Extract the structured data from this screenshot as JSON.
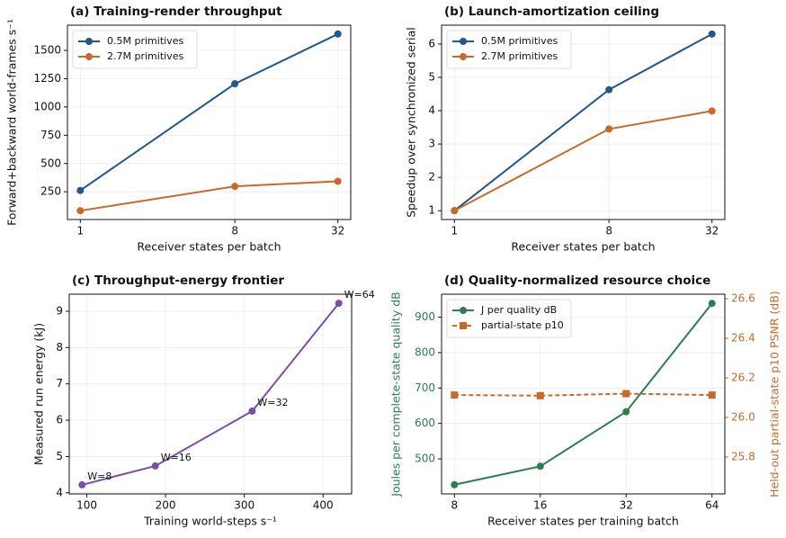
{
  "chart_data": [
    {
      "type": "line",
      "title": "(a) Training-render throughput",
      "xlabel": "Receiver states per batch",
      "ylabel": "Forward+backward world-frames s⁻¹",
      "xscale": "log",
      "x": [
        1,
        8,
        32
      ],
      "xlim": [
        0.841,
        38.05
      ],
      "xticks": [
        1,
        8,
        32
      ],
      "ylim": [
        5,
        1723
      ],
      "yticks": [
        250,
        500,
        750,
        1000,
        1250,
        1500
      ],
      "grid": true,
      "legend": "upper left",
      "series": [
        {
          "name": "0.5M primitives",
          "color": "#22578a",
          "marker": "o",
          "linestyle": "solid",
          "values": [
            262,
            1205,
            1645
          ]
        },
        {
          "name": "2.7M primitives",
          "color": "#c8692a",
          "marker": "o",
          "linestyle": "solid",
          "values": [
            83,
            298,
            343
          ]
        }
      ]
    },
    {
      "type": "line",
      "title": "(b) Launch-amortization ceiling",
      "xlabel": "Receiver states per batch",
      "ylabel": "Speedup over synchronized serial",
      "xscale": "log",
      "x": [
        1,
        8,
        32
      ],
      "xlim": [
        0.841,
        38.05
      ],
      "xticks": [
        1,
        8,
        32
      ],
      "ylim": [
        0.735,
        6.565
      ],
      "yticks": [
        1,
        2,
        3,
        4,
        5,
        6
      ],
      "grid": true,
      "legend": "upper left",
      "series": [
        {
          "name": "0.5M primitives",
          "color": "#22578a",
          "marker": "o",
          "linestyle": "solid",
          "values": [
            1,
            4.63,
            6.3
          ]
        },
        {
          "name": "2.7M primitives",
          "color": "#c8692a",
          "marker": "o",
          "linestyle": "solid",
          "values": [
            1,
            3.45,
            3.99
          ]
        }
      ]
    },
    {
      "type": "line",
      "title": "(c) Throughput-energy frontier",
      "xlabel": "Training world-steps s⁻¹",
      "ylabel": "Measured run energy (kJ)",
      "x": [
        94,
        187,
        310,
        420
      ],
      "xlim": [
        77.7,
        436.3
      ],
      "xticks": [
        100,
        200,
        300,
        400
      ],
      "ylim": [
        3.97,
        9.47
      ],
      "yticks": [
        4,
        5,
        6,
        7,
        8,
        9
      ],
      "grid": true,
      "point_labels": [
        "W=8",
        "W=16",
        "W=32",
        "W=64"
      ],
      "series": [
        {
          "color": "#7a4fa8",
          "marker": "o",
          "linestyle": "solid",
          "values": [
            4.22,
            4.74,
            6.25,
            9.22
          ]
        }
      ]
    },
    {
      "type": "line",
      "title": "(d) Quality-normalized resource choice",
      "xlabel": "Receiver states per training batch",
      "ylabel": "Joules per complete-state quality dB",
      "y2label": "Held-out partial-state p10 PSNR (dB)",
      "xscale": "log",
      "x": [
        8,
        16,
        32,
        64
      ],
      "xlim": [
        7.21,
        71.0
      ],
      "xticks": [
        8,
        16,
        32,
        64
      ],
      "ylim": [
        401,
        965
      ],
      "yticks": [
        500,
        600,
        700,
        800,
        900
      ],
      "y2lim": [
        25.613,
        26.623
      ],
      "y2ticks": [
        25.8,
        {
          "value": 26,
          "label": "26.0"
        },
        26.2,
        26.4,
        26.6
      ],
      "grid": true,
      "legend": "upper left",
      "series": [
        {
          "name": "J per quality dB",
          "color": "#2e7d50",
          "marker": "o",
          "linestyle": "solid",
          "values": [
            427,
            479,
            633,
            939
          ]
        },
        {
          "name": "partial-state p10",
          "color": "#c8692a",
          "marker": "s",
          "linestyle": "dashed",
          "axis": "y2",
          "values": [
            26.113,
            26.11,
            26.12,
            26.113
          ]
        }
      ]
    }
  ]
}
